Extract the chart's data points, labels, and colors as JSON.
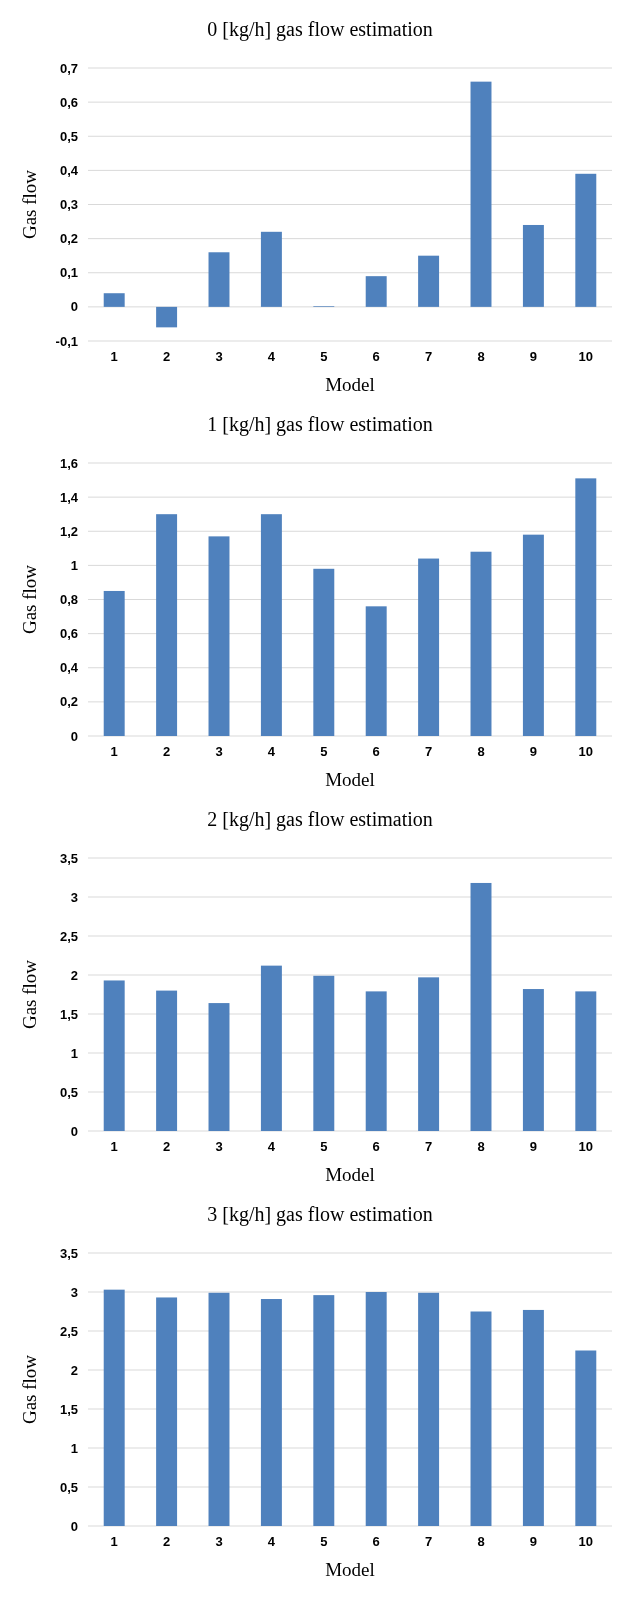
{
  "chart_data": [
    {
      "type": "bar",
      "title": "0 [kg/h] gas flow estimation",
      "xlabel": "Model",
      "ylabel": "Gas flow",
      "categories": [
        "1",
        "2",
        "3",
        "4",
        "5",
        "6",
        "7",
        "8",
        "9",
        "10"
      ],
      "values": [
        0.04,
        -0.06,
        0.16,
        0.22,
        0.002,
        0.09,
        0.15,
        0.66,
        0.24,
        0.39
      ],
      "color": "#4f81bd",
      "ylim": [
        -0.1,
        0.7
      ],
      "yticks": [
        {
          "value": -0.1,
          "label": "-0,1"
        },
        0,
        {
          "value": 0.1,
          "label": "0,1"
        },
        {
          "value": 0.2,
          "label": "0,2"
        },
        {
          "value": 0.3,
          "label": "0,3"
        },
        {
          "value": 0.4,
          "label": "0,4"
        },
        {
          "value": 0.5,
          "label": "0,5"
        },
        {
          "value": 0.6,
          "label": "0,6"
        },
        {
          "value": 0.7,
          "label": "0,7"
        }
      ],
      "grid": "y"
    },
    {
      "type": "bar",
      "title": "1 [kg/h] gas flow estimation",
      "xlabel": "Model",
      "ylabel": "Gas flow",
      "categories": [
        "1",
        "2",
        "3",
        "4",
        "5",
        "6",
        "7",
        "8",
        "9",
        "10"
      ],
      "values": [
        0.85,
        1.3,
        1.17,
        1.3,
        0.98,
        0.76,
        1.04,
        1.08,
        1.18,
        1.51
      ],
      "color": "#4f81bd",
      "ylim": [
        0,
        1.6
      ],
      "yticks": [
        0,
        {
          "value": 0.2,
          "label": "0,2"
        },
        {
          "value": 0.4,
          "label": "0,4"
        },
        {
          "value": 0.6,
          "label": "0,6"
        },
        {
          "value": 0.8,
          "label": "0,8"
        },
        1,
        {
          "value": 1.2,
          "label": "1,2"
        },
        {
          "value": 1.4,
          "label": "1,4"
        },
        {
          "value": 1.6,
          "label": "1,6"
        }
      ],
      "grid": "y"
    },
    {
      "type": "bar",
      "title": "2 [kg/h] gas flow estimation",
      "xlabel": "Model",
      "ylabel": "Gas flow",
      "categories": [
        "1",
        "2",
        "3",
        "4",
        "5",
        "6",
        "7",
        "8",
        "9",
        "10"
      ],
      "values": [
        1.93,
        1.8,
        1.64,
        2.12,
        1.99,
        1.79,
        1.97,
        3.18,
        1.82,
        1.79
      ],
      "color": "#4f81bd",
      "ylim": [
        0,
        3.5
      ],
      "yticks": [
        0,
        {
          "value": 0.5,
          "label": "0,5"
        },
        1,
        {
          "value": 1.5,
          "label": "1,5"
        },
        2,
        {
          "value": 2.5,
          "label": "2,5"
        },
        3,
        {
          "value": 3.5,
          "label": "3,5"
        }
      ],
      "grid": "y"
    },
    {
      "type": "bar",
      "title": "3 [kg/h] gas flow estimation",
      "xlabel": "Model",
      "ylabel": "Gas flow",
      "categories": [
        "1",
        "2",
        "3",
        "4",
        "5",
        "6",
        "7",
        "8",
        "9",
        "10"
      ],
      "values": [
        3.03,
        2.93,
        2.99,
        2.91,
        2.96,
        3.0,
        2.99,
        2.75,
        2.77,
        2.25
      ],
      "color": "#4f81bd",
      "ylim": [
        0,
        3.5
      ],
      "yticks": [
        0,
        {
          "value": 0.5,
          "label": "0,5"
        },
        1,
        {
          "value": 1.5,
          "label": "1,5"
        },
        2,
        {
          "value": 2.5,
          "label": "2,5"
        },
        3,
        {
          "value": 3.5,
          "label": "3,5"
        }
      ],
      "grid": "y"
    }
  ]
}
